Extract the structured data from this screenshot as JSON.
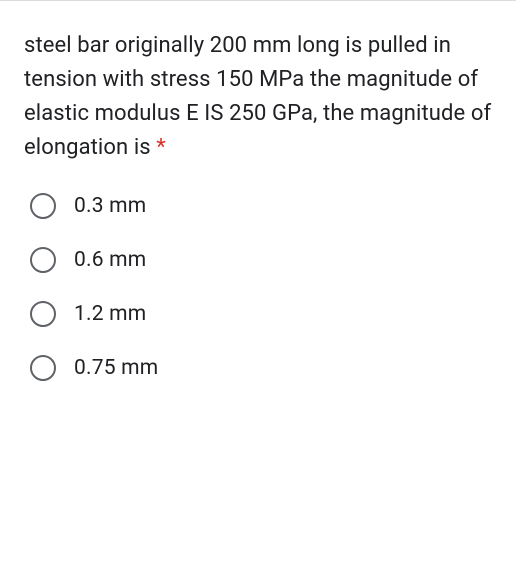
{
  "question": {
    "text": "steel bar originally 200 mm long is pulled in tension with stress 150 MPa the magnitude of elastic modulus E IS 250 GPa, the magnitude of elongation is ",
    "required_marker": "*"
  },
  "options": [
    {
      "label": "0.3 mm"
    },
    {
      "label": "0.6 mm"
    },
    {
      "label": "1.2 mm"
    },
    {
      "label": "0.75 mm"
    }
  ],
  "colors": {
    "text": "#202124",
    "border": "#dadce0",
    "radio_border": "#5f6368",
    "required": "#d93025",
    "background": "#ffffff"
  }
}
